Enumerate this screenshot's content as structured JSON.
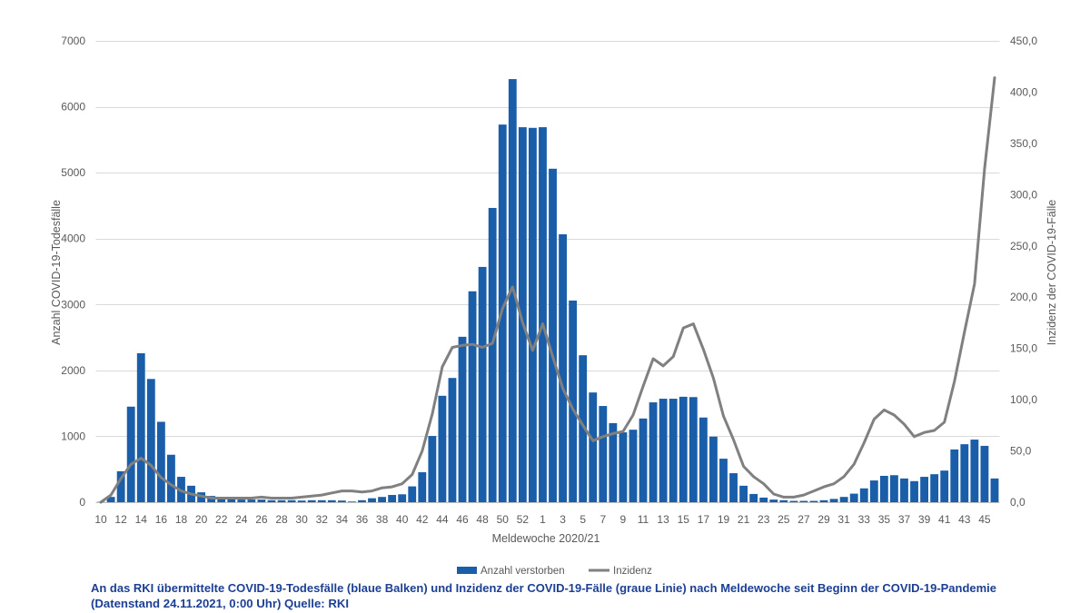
{
  "chart_data": {
    "type": "bar",
    "xlabel": "Meldewoche 2020/21",
    "ylabel": "Anzahl COVID-19-Todesfälle",
    "y2label": "Inzidenz der COVID-19-Fälle",
    "ylim": [
      0,
      7000
    ],
    "y2lim": [
      0,
      450
    ],
    "y_ticks": [
      "0",
      "1000",
      "2000",
      "3000",
      "4000",
      "5000",
      "6000",
      "7000"
    ],
    "y2_ticks": [
      "0,0",
      "50,0",
      "100,0",
      "150,0",
      "200,0",
      "250,0",
      "300,0",
      "350,0",
      "400,0",
      "450,0"
    ],
    "grid": true,
    "legend": "bottom-center",
    "categories": [
      10,
      11,
      12,
      13,
      14,
      15,
      16,
      17,
      18,
      19,
      20,
      21,
      22,
      23,
      24,
      25,
      26,
      27,
      28,
      29,
      30,
      31,
      32,
      33,
      34,
      35,
      36,
      37,
      38,
      39,
      40,
      41,
      42,
      43,
      44,
      45,
      46,
      47,
      48,
      49,
      50,
      51,
      52,
      53,
      1,
      2,
      3,
      4,
      5,
      6,
      7,
      8,
      9,
      10,
      11,
      12,
      13,
      14,
      15,
      16,
      17,
      18,
      19,
      20,
      21,
      22,
      23,
      24,
      25,
      26,
      27,
      28,
      29,
      30,
      31,
      32,
      33,
      34,
      35,
      36,
      37,
      38,
      39,
      40,
      41,
      42,
      43,
      44,
      45,
      46
    ],
    "series": [
      {
        "name": "Anzahl verstorben",
        "type": "bar",
        "values": [
          5,
          80,
          470,
          1450,
          2260,
          1870,
          1220,
          720,
          385,
          250,
          150,
          95,
          70,
          50,
          40,
          40,
          40,
          30,
          30,
          30,
          25,
          30,
          30,
          30,
          25,
          10,
          30,
          60,
          80,
          110,
          120,
          240,
          455,
          1005,
          1615,
          1885,
          2510,
          3200,
          3570,
          4465,
          5730,
          6420,
          5690,
          5680,
          5690,
          5060,
          4065,
          3060,
          2230,
          1665,
          1460,
          1200,
          1060,
          1100,
          1270,
          1515,
          1570,
          1570,
          1600,
          1595,
          1285,
          995,
          660,
          440,
          250,
          125,
          70,
          40,
          30,
          20,
          20,
          20,
          30,
          50,
          80,
          130,
          210,
          330,
          400,
          410,
          360,
          320,
          385,
          425,
          480,
          800,
          880,
          950,
          855,
          360
        ]
      },
      {
        "name": "Inzidenz",
        "type": "line",
        "values": [
          0,
          7,
          23,
          37,
          43,
          36,
          24,
          17,
          11,
          8,
          6,
          4,
          4,
          4,
          4,
          4,
          5,
          4,
          4,
          4,
          5,
          6,
          7,
          9,
          11,
          11,
          10,
          11,
          14,
          15,
          18,
          27,
          50,
          86,
          132,
          151,
          153,
          154,
          151,
          155,
          189,
          210,
          175,
          148,
          174,
          142,
          111,
          91,
          75,
          60,
          64,
          67,
          69,
          85,
          113,
          140,
          133,
          142,
          170,
          174,
          149,
          121,
          84,
          61,
          35,
          25,
          18,
          8,
          5,
          5,
          7,
          11,
          15,
          18,
          25,
          37,
          58,
          81,
          90,
          85,
          76,
          64,
          68,
          70,
          78,
          118,
          166,
          213,
          325,
          414
        ]
      }
    ]
  },
  "caption": [
    "An das RKI übermittelte COVID-19-Todesfälle (blaue Balken) und Inzidenz der COVID-19-Fälle (graue Linie) nach Meldewoche seit Beginn der COVID-19-Pandemie",
    "(Datenstand 24.11.2021, 0:00 Uhr) Quelle: RKI"
  ],
  "colors": {
    "bar": "#1a5eaa",
    "line": "#808080",
    "grid": "#d9d9d9",
    "baseline": "#bfbfbf"
  }
}
